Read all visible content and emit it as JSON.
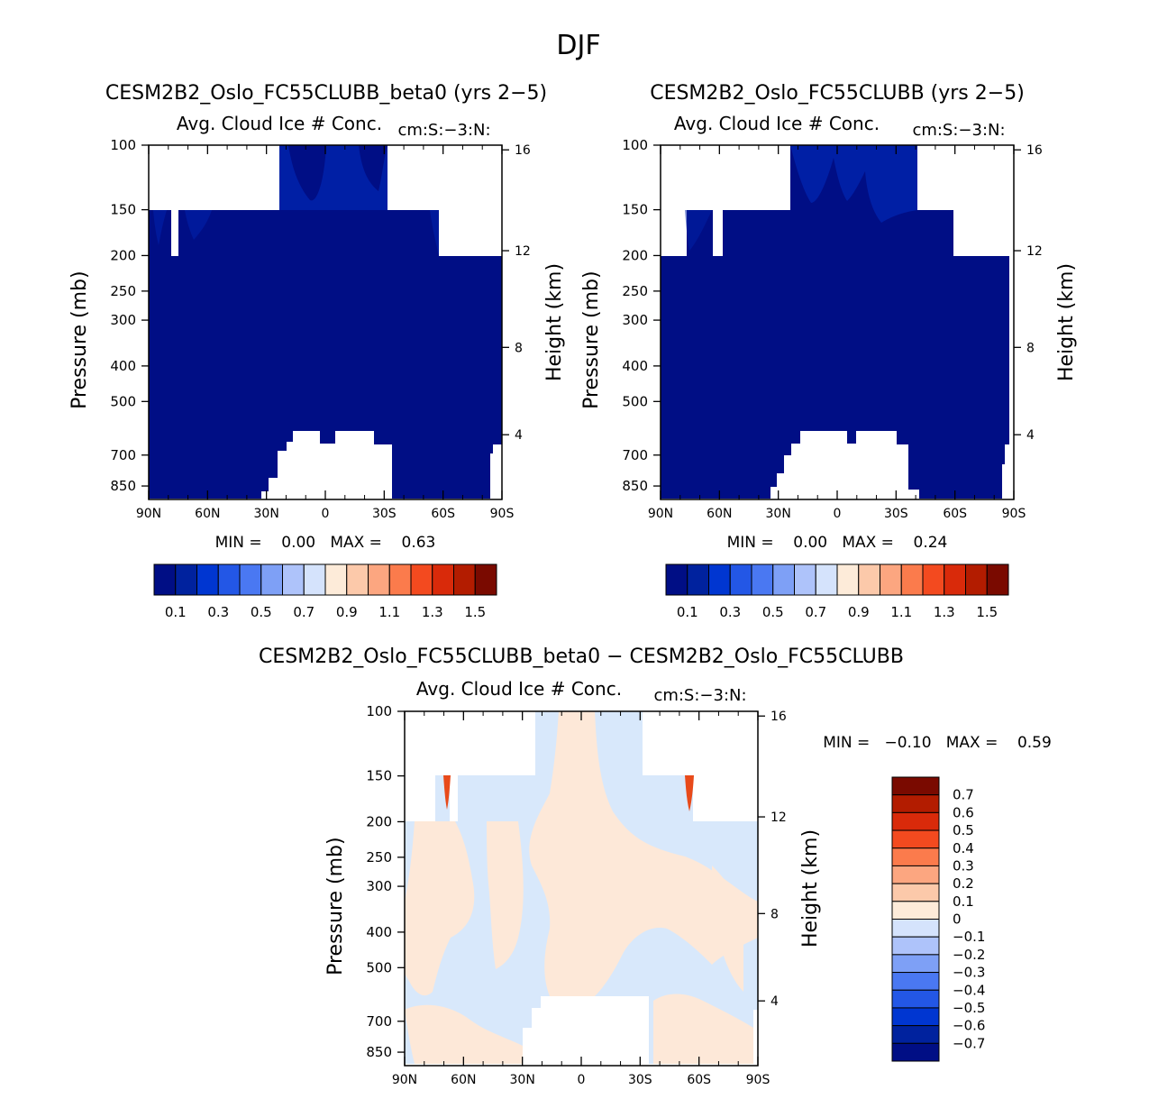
{
  "figure_title": "DJF",
  "colors": {
    "seq": [
      "#000e85",
      "#00229e",
      "#0036d1",
      "#2357e6",
      "#4a78f2",
      "#7ea0f6",
      "#aec3fa",
      "#d5e3fc",
      "#fdebd9",
      "#fcc9aa",
      "#fca680",
      "#fb7b4c",
      "#f34a1f",
      "#d92a0a",
      "#b31c00",
      "#7a0a00"
    ],
    "diff": [
      "#7a0a00",
      "#b31c00",
      "#d92a0a",
      "#f34a1f",
      "#fb7b4c",
      "#fca680",
      "#fcc9aa",
      "#fdebd9",
      "#d5e3fc",
      "#aec3fa",
      "#7ea0f6",
      "#4a78f2",
      "#2357e6",
      "#0036d1",
      "#00229e",
      "#000e85"
    ],
    "fill_low": "#000e85",
    "fill_high": "#0022aa",
    "diff_pos": "#fde8d8",
    "diff_neg": "#d8e8fb",
    "diff_hot": "#e84a1a"
  },
  "chart_data": [
    {
      "type": "heatmap",
      "id": "panel1",
      "title": "CESM2B2_Oslo_FC55CLUBB_beta0 (yrs 2−5)",
      "subtitle_left": "Avg. Cloud Ice # Conc.",
      "subtitle_right": "cm:S:−3:N:",
      "xlabel": "",
      "ylabel": "Pressure (mb)",
      "y2label": "Height (km)",
      "x_ticks": [
        "90N",
        "60N",
        "30N",
        "0",
        "30S",
        "60S",
        "90S"
      ],
      "y_ticks": [
        "100",
        "150",
        "200",
        "250",
        "300",
        "400",
        "500",
        "700",
        "850"
      ],
      "y2_ticks": [
        "16",
        "12",
        "8",
        "4"
      ],
      "minmax_text": "MIN =    0.00   MAX =    0.63",
      "colorbar_labels": [
        "0.1",
        "0.3",
        "0.5",
        "0.7",
        "0.9",
        "1.1",
        "1.3",
        "1.5"
      ],
      "value_range": [
        0.0,
        0.63
      ]
    },
    {
      "type": "heatmap",
      "id": "panel2",
      "title": "CESM2B2_Oslo_FC55CLUBB (yrs 2−5)",
      "subtitle_left": "Avg. Cloud Ice # Conc.",
      "subtitle_right": "cm:S:−3:N:",
      "xlabel": "",
      "ylabel": "Pressure (mb)",
      "y2label": "Height (km)",
      "x_ticks": [
        "90N",
        "60N",
        "30N",
        "0",
        "30S",
        "60S",
        "90S"
      ],
      "y_ticks": [
        "100",
        "150",
        "200",
        "250",
        "300",
        "400",
        "500",
        "700",
        "850"
      ],
      "y2_ticks": [
        "16",
        "12",
        "8",
        "4"
      ],
      "minmax_text": "MIN =    0.00   MAX =    0.24",
      "colorbar_labels": [
        "0.1",
        "0.3",
        "0.5",
        "0.7",
        "0.9",
        "1.1",
        "1.3",
        "1.5"
      ],
      "value_range": [
        0.0,
        0.24
      ]
    },
    {
      "type": "heatmap",
      "id": "panel3",
      "title": "CESM2B2_Oslo_FC55CLUBB_beta0 − CESM2B2_Oslo_FC55CLUBB",
      "subtitle_left": "Avg. Cloud Ice # Conc.",
      "subtitle_right": "cm:S:−3:N:",
      "xlabel": "",
      "ylabel": "Pressure (mb)",
      "y2label": "Height (km)",
      "x_ticks": [
        "90N",
        "60N",
        "30N",
        "0",
        "30S",
        "60S",
        "90S"
      ],
      "y_ticks": [
        "100",
        "150",
        "200",
        "250",
        "300",
        "400",
        "500",
        "700",
        "850"
      ],
      "y2_ticks": [
        "16",
        "12",
        "8",
        "4"
      ],
      "minmax_text": "MIN =   −0.10   MAX =    0.59",
      "colorbar_labels": [
        "0.7",
        "0.6",
        "0.5",
        "0.4",
        "0.3",
        "0.2",
        "0.1",
        "0",
        "−0.1",
        "−0.2",
        "−0.3",
        "−0.4",
        "−0.5",
        "−0.6",
        "−0.7"
      ],
      "value_range": [
        -0.1,
        0.59
      ]
    }
  ]
}
